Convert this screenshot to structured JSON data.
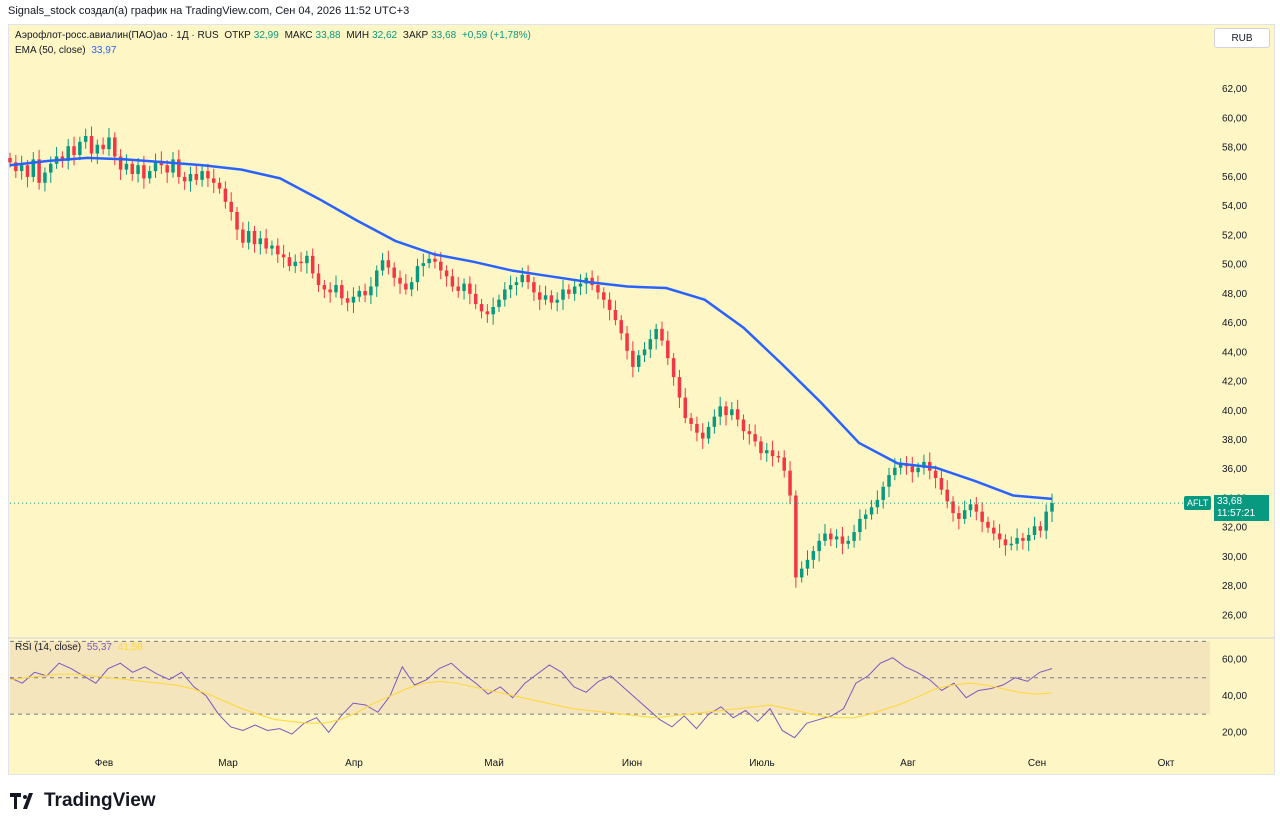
{
  "header_text": "Signals_stock создал(а) график на TradingView.com, Сен 04, 2026 11:52 UTC+3",
  "symbol_legend": {
    "name": "Аэрофлот-росс.авиалин(ПАО)ао · 1Д · RUS",
    "open_label": "ОТКР",
    "open": "32,99",
    "high_label": "МАКС",
    "high": "33,88",
    "low_label": "МИН",
    "low": "32,62",
    "close_label": "ЗАКР",
    "close": "33,68",
    "change": "+0,59 (+1,78%)"
  },
  "ema_legend": {
    "label": "EMA (50, close)",
    "value": "33,97"
  },
  "rsi_legend": {
    "label": "RSI (14, close)",
    "value": "55,37",
    "ma_value": "41,58"
  },
  "currency_button": "RUB",
  "ticker": "AFLT",
  "last_price": "33,68",
  "countdown": "11:57:21",
  "brand": "TradingView",
  "colors": {
    "background": "#fef6c4",
    "up": "#089981",
    "down": "#f23645",
    "ema": "#2962ff",
    "rsi": "#7e57c2",
    "rsi_ma": "#fdd835"
  },
  "chart_data": [
    {
      "type": "candlestick",
      "title": "Аэрофлот-росс.авиалин(ПАО)ао · 1Д · RUS",
      "x_ticks": [
        "Фев",
        "Мар",
        "Апр",
        "Май",
        "Июн",
        "Июль",
        "Авг",
        "Сен",
        "Окт"
      ],
      "y_ticks": [
        "26,00",
        "28,00",
        "30,00",
        "32,00",
        "34,00",
        "36,00",
        "38,00",
        "40,00",
        "42,00",
        "44,00",
        "46,00",
        "48,00",
        "50,00",
        "52,00",
        "54,00",
        "56,00",
        "58,00",
        "60,00",
        "62,00"
      ],
      "ylim": [
        25,
        64
      ],
      "close_series": [
        57,
        56.4,
        56.8,
        56,
        57.2,
        55.6,
        56.3,
        56.9,
        57.4,
        57.1,
        58.1,
        57.5,
        58.4,
        58.8,
        57.6,
        58.2,
        57.9,
        58.7,
        57.4,
        56.5,
        56.9,
        56.2,
        56.8,
        55.9,
        56.4,
        57.1,
        56.8,
        56.3,
        57.2,
        56,
        55.7,
        56.2,
        55.8,
        56.4,
        55.9,
        55.6,
        55.2,
        54.3,
        53.6,
        52.4,
        51.5,
        52.3,
        51.4,
        51.8,
        51.1,
        51.3,
        50.7,
        50.5,
        49.9,
        50.2,
        50.1,
        50.6,
        49.4,
        48.6,
        48.3,
        48.1,
        48.6,
        47.7,
        47.4,
        47.8,
        48.2,
        47.9,
        48.5,
        49.6,
        50.3,
        49.8,
        49.1,
        48.7,
        48.3,
        48.8,
        49.9,
        50.1,
        50.4,
        50.2,
        49.6,
        49.2,
        48.5,
        48.2,
        48.7,
        48,
        47.3,
        46.8,
        46.6,
        47.1,
        47.6,
        48.3,
        48.6,
        48.8,
        49.3,
        48.8,
        48.1,
        47.6,
        47.9,
        47.4,
        47.6,
        48.3,
        48,
        48.5,
        48.7,
        49.1,
        48.6,
        48.1,
        47.6,
        46.9,
        46.2,
        45.3,
        44.1,
        43,
        43.8,
        44.2,
        44.9,
        45.6,
        44.8,
        43.6,
        42.3,
        40.9,
        39.5,
        39.1,
        38.5,
        38.1,
        38.9,
        39.6,
        40.3,
        39.7,
        40.1,
        39.4,
        38.6,
        38.4,
        37.9,
        37.1,
        37.3,
        36.9,
        36.8,
        35.9,
        34.2,
        28.6,
        29.2,
        29.8,
        30.4,
        31.1,
        31.6,
        31.2,
        31.4,
        30.9,
        31.1,
        31.7,
        32.6,
        32.9,
        33.4,
        33.9,
        34.8,
        35.6,
        36.1,
        36.4,
        36.2,
        35.8,
        36.1,
        36.5,
        35.9,
        35.4,
        34.6,
        33.8,
        33,
        32.6,
        33.2,
        33.6,
        33.1,
        32.4,
        32,
        31.6,
        31.2,
        30.8,
        30.9,
        31.3,
        31.1,
        31.5,
        32.1,
        31.8,
        33.1,
        33.68
      ],
      "ema50_series": [
        56.8,
        57.1,
        57.3,
        57.2,
        57,
        56.8,
        56.5,
        55.9,
        54.5,
        53,
        51.6,
        50.7,
        50.2,
        49.6,
        49.2,
        48.8,
        48.5,
        48.4,
        47.6,
        45.7,
        43.2,
        40.6,
        37.8,
        36.4,
        36.1,
        35.2,
        34.2,
        33.97
      ],
      "last_price": 33.68
    },
    {
      "type": "line",
      "title": "RSI (14, close)",
      "y_ticks": [
        "20,00",
        "40,00",
        "60,00"
      ],
      "ylim": [
        13,
        68
      ],
      "bands": [
        30,
        50,
        70
      ],
      "rsi_series": [
        50,
        47,
        53,
        51,
        58,
        55,
        51,
        47,
        55,
        58,
        53,
        56,
        52,
        49,
        53,
        45,
        40,
        30,
        23,
        21,
        24,
        21,
        22,
        19,
        25,
        28,
        20,
        29,
        36,
        35,
        31,
        40,
        56,
        46,
        49,
        55,
        58,
        52,
        47,
        41,
        45,
        39,
        47,
        52,
        57,
        53,
        45,
        42,
        48,
        51,
        45,
        39,
        33,
        27,
        23,
        29,
        22,
        30,
        34,
        28,
        32,
        26,
        33,
        21,
        17,
        25,
        27,
        29,
        33,
        47,
        51,
        58,
        61,
        56,
        53,
        49,
        43,
        47,
        39,
        43,
        44,
        46,
        50,
        48,
        53,
        55
      ],
      "rsi_ma_series": [
        49,
        50,
        51,
        52,
        52,
        51,
        50,
        49,
        48,
        47,
        46,
        44,
        41,
        37,
        33,
        30,
        27,
        26,
        25,
        25,
        27,
        31,
        36,
        40,
        44,
        47,
        48,
        47,
        45,
        43,
        41,
        39,
        37,
        35,
        33,
        32,
        31,
        30,
        29,
        28,
        29,
        30,
        31,
        32,
        33,
        34,
        35,
        33,
        31,
        29,
        28,
        28,
        30,
        33,
        36,
        40,
        44,
        46,
        47,
        46,
        44,
        42,
        41,
        41.58
      ],
      "value": 55.37,
      "ma_value": 41.58
    }
  ]
}
